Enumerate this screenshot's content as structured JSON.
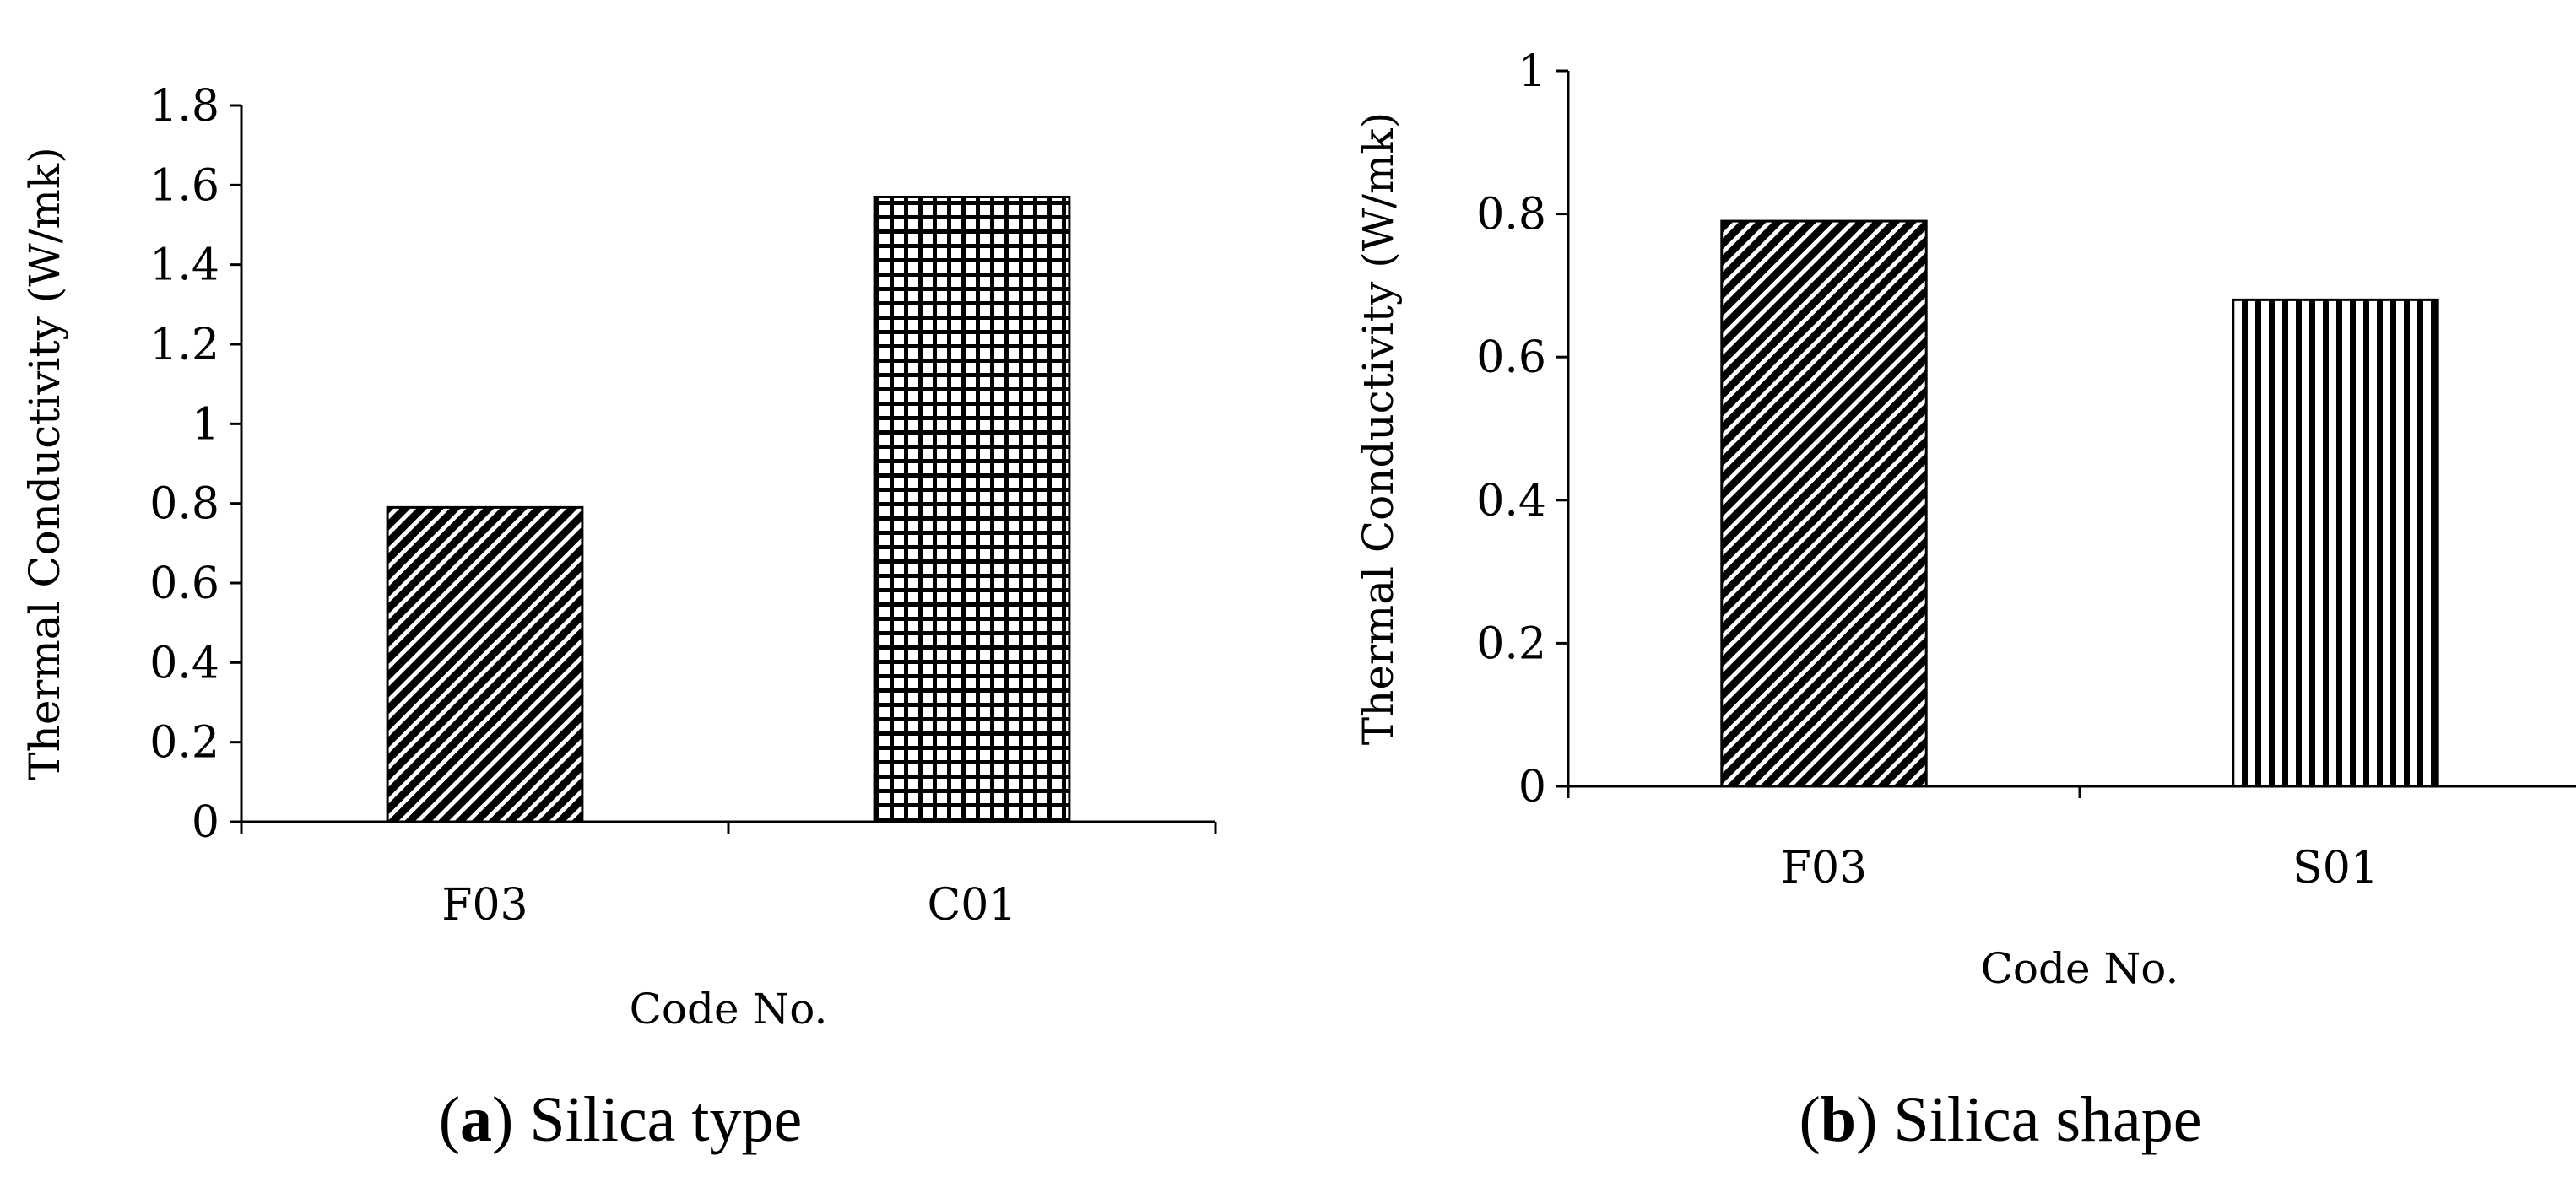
{
  "chart_data": [
    {
      "type": "bar",
      "panel": "a",
      "caption_letter": "a",
      "caption_text": "Silica type",
      "categories": [
        "F03",
        "C01"
      ],
      "values": [
        0.79,
        1.57
      ],
      "xlabel": "Code No.",
      "ylabel": "Thermal Conductivity (W/mk)",
      "ylim": [
        0,
        1.8
      ],
      "yticks": [
        "0",
        "0.2",
        "0.4",
        "0.6",
        "0.8",
        "1",
        "1.2",
        "1.4",
        "1.6",
        "1.8"
      ],
      "patterns": [
        "diagonal",
        "grid"
      ],
      "grid": false
    },
    {
      "type": "bar",
      "panel": "b",
      "caption_letter": "b",
      "caption_text": "Silica shape",
      "categories": [
        "F03",
        "S01"
      ],
      "values": [
        0.79,
        0.68
      ],
      "xlabel": "Code No.",
      "ylabel": "Thermal Conductivity (W/mk)",
      "ylim": [
        0,
        1
      ],
      "yticks": [
        "0",
        "0.2",
        "0.4",
        "0.6",
        "0.8",
        "1"
      ],
      "patterns": [
        "diagonal",
        "vertical"
      ],
      "grid": false
    }
  ]
}
